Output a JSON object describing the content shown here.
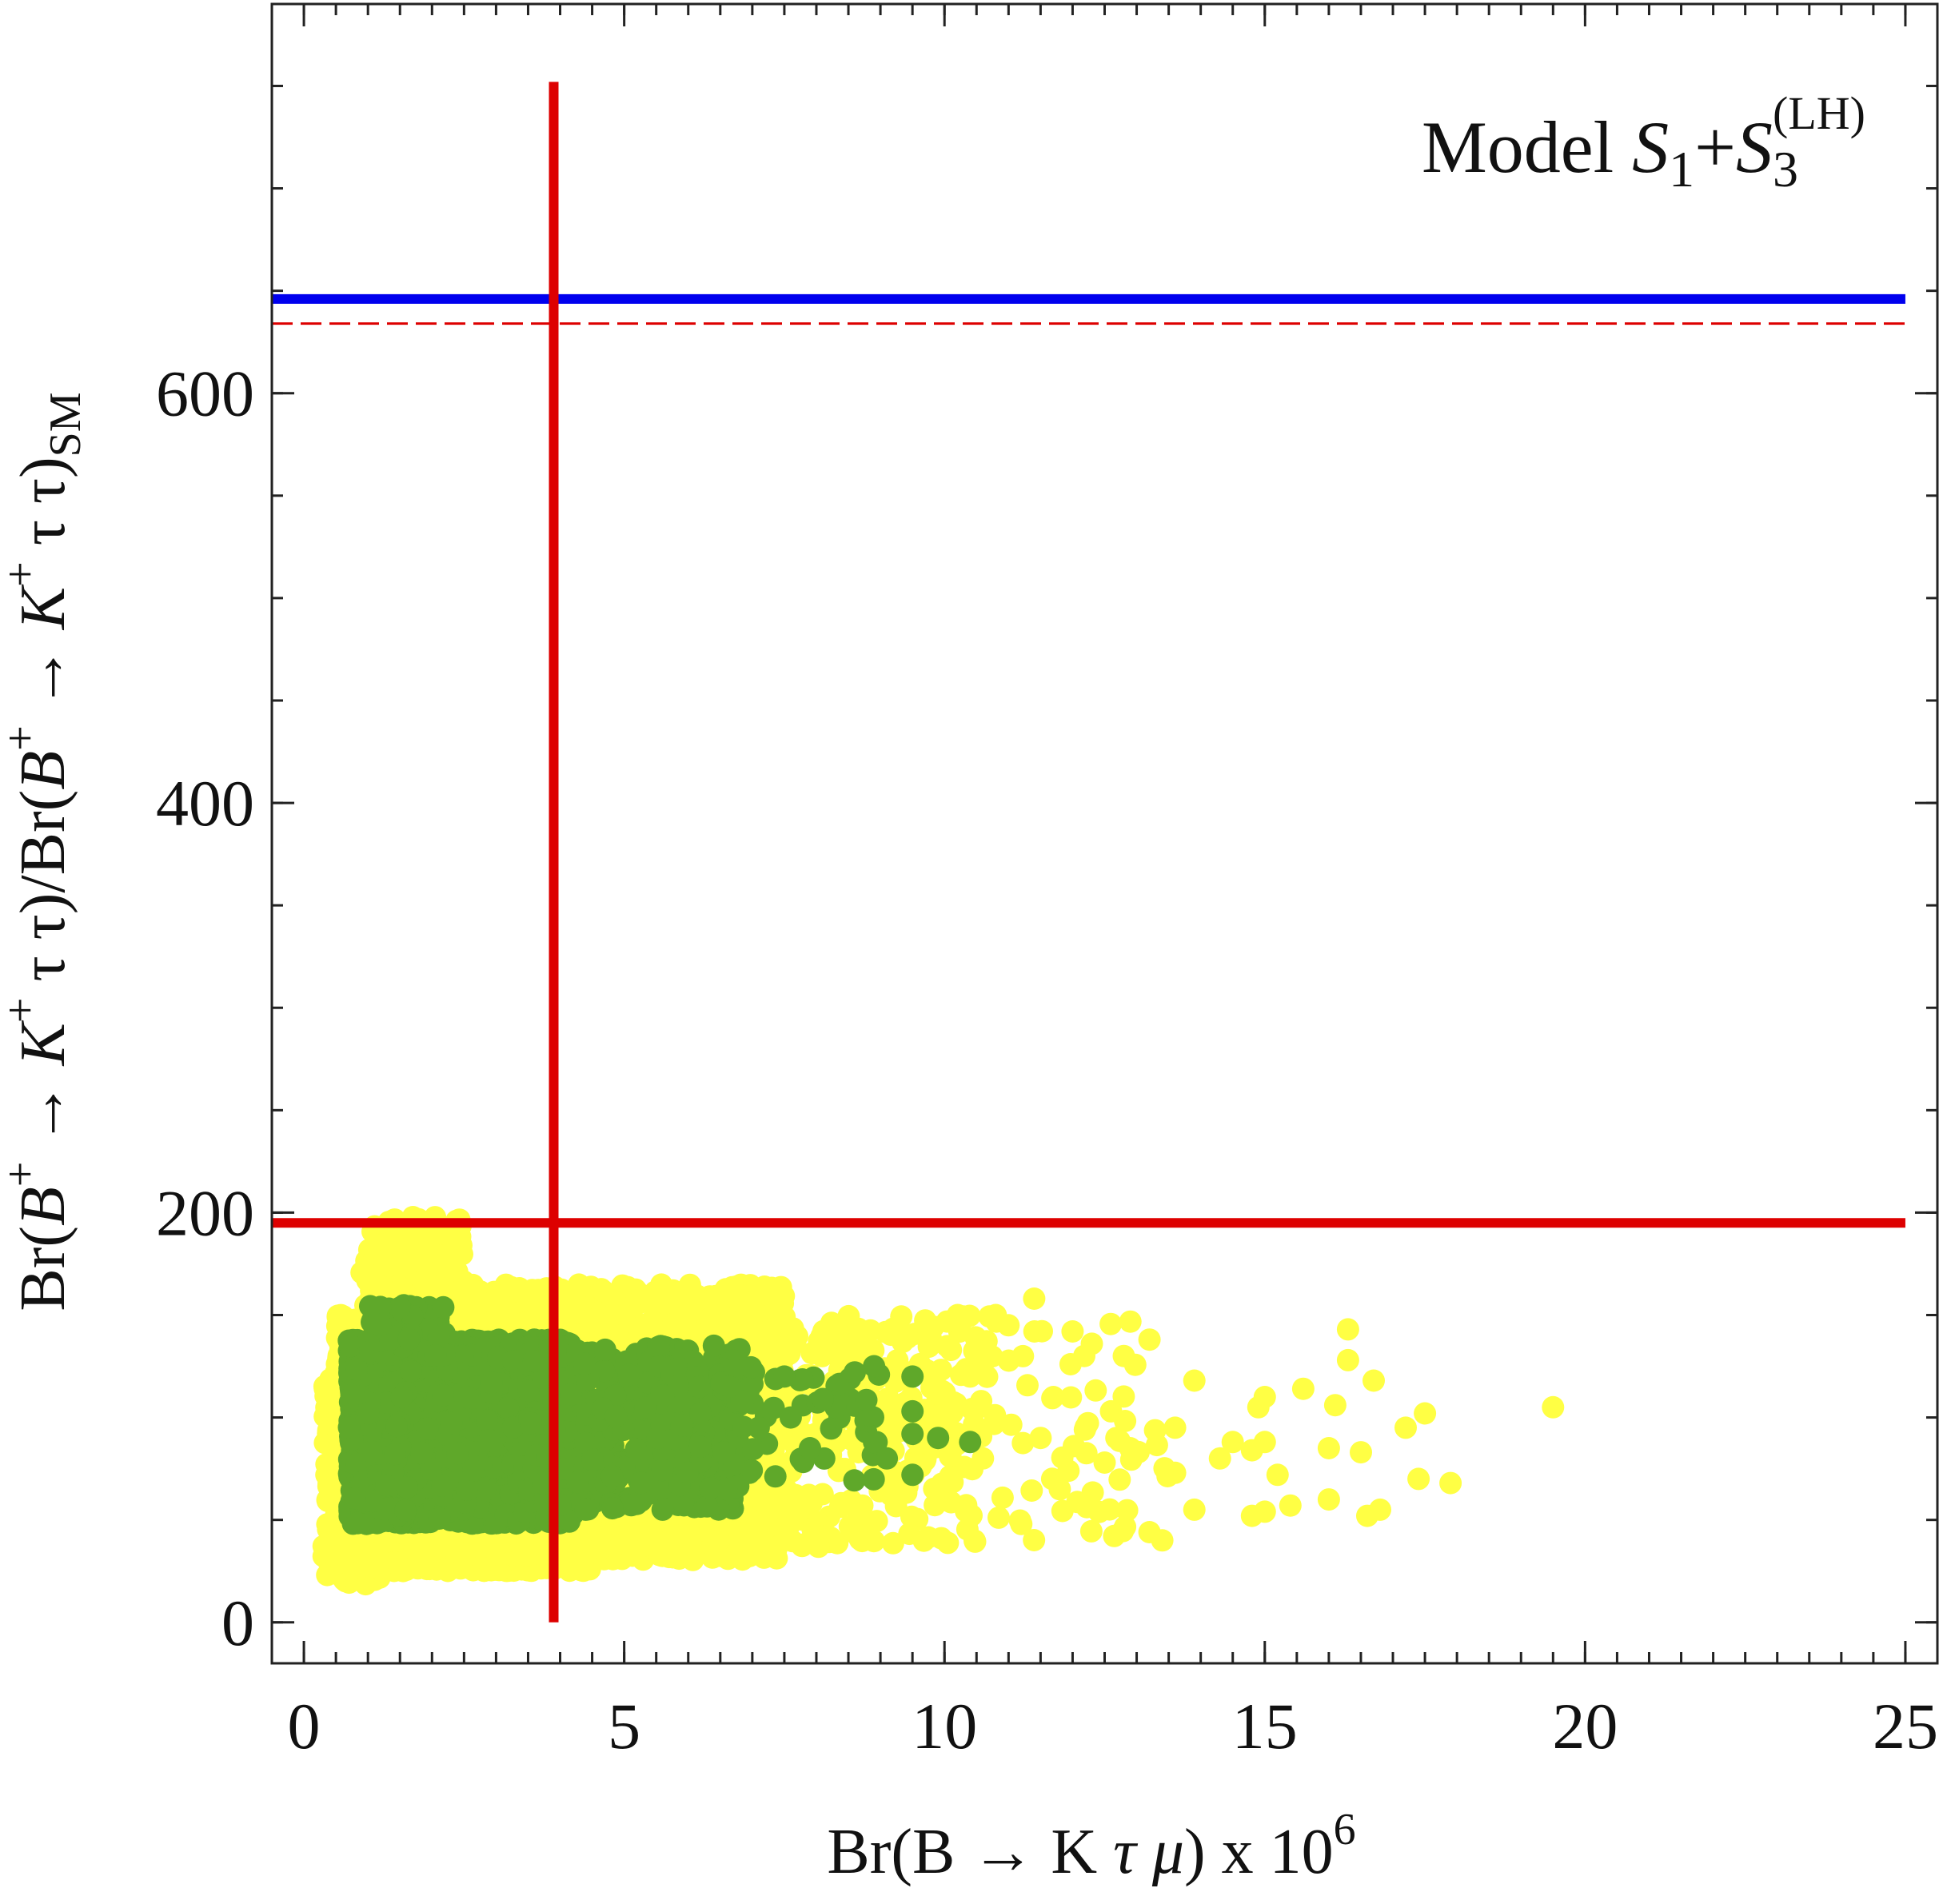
{
  "chart_data": {
    "type": "scatter",
    "annotation": {
      "prefix": "Model ",
      "s1": "S",
      "s1_sub": "1",
      "plus": "+",
      "s3": "S",
      "s3_sub": "3",
      "s3_sup": "(LH)"
    },
    "xlabel": {
      "prefix": "Br(B → K ",
      "tau": "τ",
      "mu": "μ",
      "suffix": ") x 10",
      "exp": "6"
    },
    "ylabel": {
      "br1": "Br(",
      "B1": "B",
      "sup1": "+",
      "arr1": " → ",
      "K1": "K",
      "sup2": "+",
      "tt1": " τ τ)/Br(",
      "B2": "B",
      "sup3": "+",
      "arr2": " → ",
      "K2": "K",
      "sup4": "+",
      "tt2": " τ τ)",
      "sub": "SM"
    },
    "xlim": [
      -0.5,
      25.5
    ],
    "ylim": [
      -20,
      790
    ],
    "xticks": [
      0,
      5,
      10,
      15,
      20,
      25
    ],
    "xtick_labels": [
      "0",
      "5",
      "10",
      "15",
      "20",
      "25"
    ],
    "yticks": [
      0,
      200,
      400,
      600
    ],
    "ytick_labels": [
      "0",
      "200",
      "400",
      "600"
    ],
    "x_minor_step": 0.5,
    "y_minor_step": 50,
    "reference_lines": [
      {
        "name": "blue-horizontal-limit",
        "orientation": "horizontal",
        "value": 646,
        "color": "#0000ee",
        "style": "solid",
        "width": "thick",
        "x_range": [
          -0.5,
          25
        ]
      },
      {
        "name": "red-dashed-horizontal-limit",
        "orientation": "horizontal",
        "value": 634,
        "color": "#dd0000",
        "style": "dashed",
        "width": "thin",
        "x_range": [
          -0.5,
          25
        ]
      },
      {
        "name": "red-horizontal-limit",
        "orientation": "horizontal",
        "value": 195,
        "color": "#dd0000",
        "style": "solid",
        "width": "thick",
        "x_range": [
          -0.5,
          25
        ]
      },
      {
        "name": "red-vertical-limit",
        "orientation": "vertical",
        "value": 3.9,
        "color": "#dd0000",
        "style": "solid",
        "width": "thick",
        "y_range": [
          0,
          752
        ]
      }
    ],
    "series": [
      {
        "name": "all-points",
        "color": "#ffff44",
        "clouds": [
          {
            "x_range": [
              0.3,
              1.2
            ],
            "y_range": [
              18,
              120
            ],
            "n": 300
          },
          {
            "x_range": [
              0.5,
              4.5
            ],
            "y_range": [
              25,
              150
            ],
            "n": 3000
          },
          {
            "x_range": [
              0.9,
              2.5
            ],
            "y_range": [
              140,
              198
            ],
            "n": 220
          },
          {
            "x_range": [
              2.0,
              7.5
            ],
            "y_range": [
              30,
              165
            ],
            "n": 1600
          },
          {
            "x_range": [
              4.5,
              10.5
            ],
            "y_range": [
              35,
              150
            ],
            "n": 450
          },
          {
            "x_range": [
              7.0,
              13.5
            ],
            "y_range": [
              40,
              150
            ],
            "n": 120
          }
        ],
        "points": [
          [
            19.5,
            105
          ],
          [
            17.9,
            68
          ],
          [
            17.5,
            102
          ],
          [
            17.2,
            95
          ],
          [
            17.4,
            70
          ],
          [
            16.3,
            143
          ],
          [
            16.3,
            128
          ],
          [
            16.1,
            106
          ],
          [
            16.0,
            85
          ],
          [
            16.0,
            60
          ],
          [
            16.7,
            118
          ],
          [
            16.5,
            83
          ],
          [
            16.6,
            52
          ],
          [
            16.8,
            55
          ],
          [
            15.6,
            114
          ],
          [
            15.4,
            57
          ],
          [
            15.0,
            110
          ],
          [
            15.0,
            88
          ],
          [
            14.9,
            105
          ],
          [
            14.8,
            84
          ],
          [
            14.8,
            52
          ],
          [
            15.0,
            54
          ],
          [
            14.3,
            80
          ],
          [
            13.9,
            55
          ],
          [
            13.4,
            40
          ],
          [
            13.2,
            44
          ],
          [
            13.6,
            95
          ],
          [
            13.6,
            73
          ],
          [
            12.8,
            130
          ],
          [
            13.2,
            138
          ],
          [
            12.6,
            103
          ],
          [
            12.5,
            78
          ],
          [
            12.9,
            85
          ],
          [
            12.0,
            142
          ],
          [
            12.3,
            136
          ],
          [
            11.7,
            110
          ],
          [
            11.5,
            90
          ],
          [
            11.8,
            65
          ],
          [
            11.4,
            158
          ],
          [
            11.0,
            145
          ],
          [
            10.8,
            150
          ],
          [
            10.6,
            80
          ],
          [
            11.2,
            48
          ],
          [
            9.9,
            88
          ],
          [
            10.4,
            120
          ],
          [
            14.5,
            88
          ],
          [
            13.9,
            118
          ],
          [
            12.2,
            58
          ],
          [
            15.2,
            72
          ],
          [
            10.1,
            133
          ]
        ]
      },
      {
        "name": "allowed-points",
        "color": "#5fa82a",
        "clouds": [
          {
            "x_range": [
              0.7,
              4.2
            ],
            "y_range": [
              48,
              138
            ],
            "n": 3200
          },
          {
            "x_range": [
              1.0,
              2.2
            ],
            "y_range": [
              130,
              155
            ],
            "n": 80
          },
          {
            "x_range": [
              3.5,
              6.8
            ],
            "y_range": [
              55,
              135
            ],
            "n": 500
          },
          {
            "x_range": [
              5.5,
              9.0
            ],
            "y_range": [
              65,
              125
            ],
            "n": 90
          }
        ],
        "points": [
          [
            9.5,
            120
          ],
          [
            10.4,
            88
          ],
          [
            9.9,
            90
          ],
          [
            9.5,
            92
          ],
          [
            9.5,
            103
          ],
          [
            8.9,
            125
          ],
          [
            8.6,
            122
          ],
          [
            8.3,
            105
          ],
          [
            7.9,
            85
          ],
          [
            8.9,
            88
          ],
          [
            9.5,
            72
          ],
          [
            8.1,
            109
          ],
          [
            7.5,
            120
          ],
          [
            6.6,
            65
          ],
          [
            4.4,
            55
          ],
          [
            5.6,
            55
          ],
          [
            6.4,
            135
          ],
          [
            7.1,
            95
          ],
          [
            7.6,
            100
          ],
          [
            9.1,
            80
          ]
        ]
      }
    ]
  }
}
